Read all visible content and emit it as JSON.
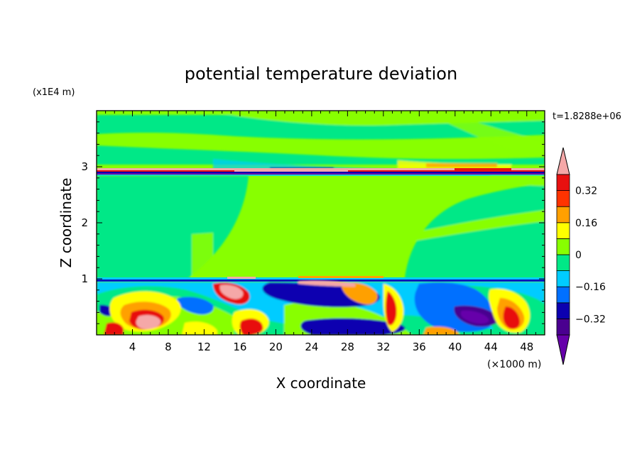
{
  "chart_data": {
    "type": "heatmap",
    "title": "potential temperature deviation",
    "xlabel": "X coordinate",
    "ylabel": "Z coordinate",
    "x_units": "(×1000 m)",
    "y_units": "(x1E4 m)",
    "time_label": "t=1.8288e+06",
    "xlim": [
      0,
      50
    ],
    "ylim": [
      0,
      4
    ],
    "x_ticks": [
      4,
      8,
      12,
      16,
      20,
      24,
      28,
      32,
      36,
      40,
      44,
      48
    ],
    "x_tick_labels": [
      "4",
      "8",
      "12",
      "16",
      "20",
      "24",
      "28",
      "32",
      "36",
      "40",
      "44",
      "48"
    ],
    "y_ticks": [
      1,
      2,
      3
    ],
    "y_tick_labels": [
      "1",
      "2",
      "3"
    ],
    "colorbar": {
      "levels": [
        -0.4,
        -0.32,
        -0.24,
        -0.16,
        -0.08,
        0,
        0.08,
        0.16,
        0.24,
        0.32,
        0.4
      ],
      "labeled_levels": [
        0.32,
        0.16,
        0,
        -0.16,
        -0.32
      ],
      "labels": [
        "0.32",
        "0.16",
        "0",
        "−0.16",
        "−0.32"
      ],
      "colors": [
        "#6600aa",
        "#4a0090",
        "#0c00b0",
        "#0070ff",
        "#00ccff",
        "#00e887",
        "#88ff00",
        "#ffff00",
        "#ffa000",
        "#ff3300",
        "#e81010",
        "#f5a8a8"
      ],
      "extend": "both"
    },
    "fields": {
      "background_value": 0.05,
      "stratosphere_band": {
        "z": [
          2.9,
          3.0
        ],
        "value": -0.3
      },
      "inversion_layer": {
        "z": 1.0,
        "value": -0.3
      },
      "boundary_layer": {
        "z": [
          0,
          1.0
        ],
        "range": [
          -0.4,
          0.4
        ]
      }
    }
  }
}
